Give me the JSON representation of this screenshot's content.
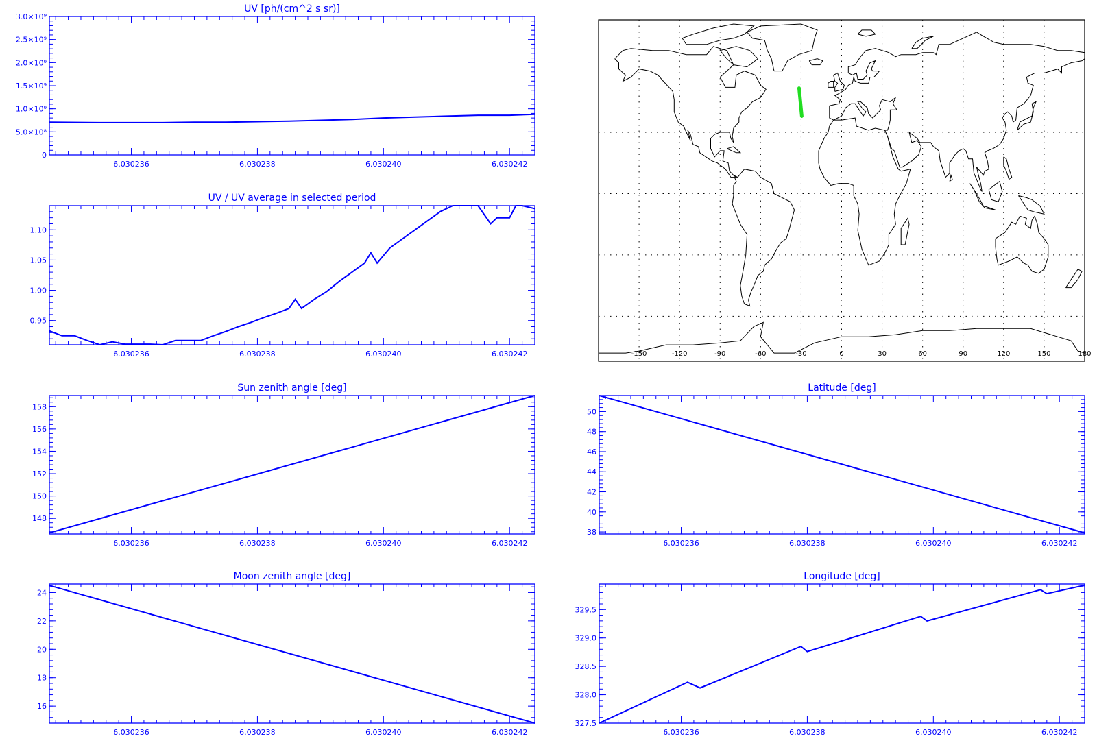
{
  "colors": {
    "axis": "#0000ff",
    "series": "#0000ff",
    "map_track": "#22dd22",
    "coast": "#000000"
  },
  "chart_data": [
    {
      "type": "line",
      "title": "UV [ph/(cm^2 s sr)]",
      "xlim": [
        6.0302347,
        6.0302424
      ],
      "ylim": [
        0,
        3000000000
      ],
      "xticks": [
        "6.030236",
        "6.030238",
        "6.030240",
        "6.030242"
      ],
      "xtick_values": [
        6.030236,
        6.030238,
        6.03024,
        6.030242
      ],
      "yticks": [
        {
          "value": 0,
          "label": "0"
        },
        {
          "value": 500000000,
          "label": "5.0×10⁸"
        },
        {
          "value": 1000000000,
          "label": "1.0×10⁹"
        },
        {
          "value": 1500000000,
          "label": "1.5×10⁹"
        },
        {
          "value": 2000000000,
          "label": "2.0×10⁹"
        },
        {
          "value": 2500000000,
          "label": "2.5×10⁹"
        },
        {
          "value": 3000000000,
          "label": "3.0×10⁹"
        }
      ],
      "series": [
        {
          "x": [
            6.0302347,
            6.0302355,
            6.030236,
            6.0302365,
            6.030237,
            6.0302375,
            6.030238,
            6.0302385,
            6.030239,
            6.0302395,
            6.03024,
            6.0302405,
            6.030241,
            6.0302415,
            6.030242,
            6.0302424
          ],
          "y": [
            710000000,
            700000000,
            700000000,
            700000000,
            710000000,
            710000000,
            720000000,
            730000000,
            750000000,
            770000000,
            800000000,
            820000000,
            840000000,
            860000000,
            860000000,
            880000000
          ]
        }
      ]
    },
    {
      "type": "line",
      "title": "UV / UV average in selected period",
      "xlim": [
        6.0302347,
        6.0302424
      ],
      "ylim": [
        0.91,
        1.14
      ],
      "xticks": [
        "6.030236",
        "6.030238",
        "6.030240",
        "6.030242"
      ],
      "xtick_values": [
        6.030236,
        6.030238,
        6.03024,
        6.030242
      ],
      "yticks": [
        {
          "value": 0.95,
          "label": "0.95"
        },
        {
          "value": 1.0,
          "label": "1.00"
        },
        {
          "value": 1.05,
          "label": "1.05"
        },
        {
          "value": 1.1,
          "label": "1.10"
        }
      ],
      "series": [
        {
          "x": [
            6.0302347,
            6.0302349,
            6.0302351,
            6.0302353,
            6.0302355,
            6.0302357,
            6.0302359,
            6.0302361,
            6.0302363,
            6.0302365,
            6.0302367,
            6.0302369,
            6.0302371,
            6.0302373,
            6.0302375,
            6.0302377,
            6.0302379,
            6.0302381,
            6.0302383,
            6.0302385,
            6.0302386,
            6.0302387,
            6.0302389,
            6.0302391,
            6.0302393,
            6.0302395,
            6.0302397,
            6.0302398,
            6.0302399,
            6.0302401,
            6.0302403,
            6.0302405,
            6.0302407,
            6.0302409,
            6.0302411,
            6.0302413,
            6.0302415,
            6.0302417,
            6.0302418,
            6.030242,
            6.0302421,
            6.0302422,
            6.0302424
          ],
          "y": [
            0.933,
            0.925,
            0.925,
            0.917,
            0.91,
            0.915,
            0.911,
            0.911,
            0.911,
            0.91,
            0.917,
            0.917,
            0.917,
            0.925,
            0.932,
            0.94,
            0.947,
            0.955,
            0.962,
            0.97,
            0.985,
            0.97,
            0.985,
            0.998,
            1.015,
            1.03,
            1.045,
            1.062,
            1.045,
            1.07,
            1.085,
            1.1,
            1.115,
            1.13,
            1.14,
            1.14,
            1.14,
            1.11,
            1.12,
            1.12,
            1.14,
            1.14,
            1.135
          ]
        }
      ]
    },
    {
      "type": "line",
      "title": "Sun zenith angle [deg]",
      "xlim": [
        6.0302347,
        6.0302424
      ],
      "ylim": [
        146.6,
        159.0
      ],
      "xticks": [
        "6.030236",
        "6.030238",
        "6.030240",
        "6.030242"
      ],
      "xtick_values": [
        6.030236,
        6.030238,
        6.03024,
        6.030242
      ],
      "yticks": [
        {
          "value": 148,
          "label": "148"
        },
        {
          "value": 150,
          "label": "150"
        },
        {
          "value": 152,
          "label": "152"
        },
        {
          "value": 154,
          "label": "154"
        },
        {
          "value": 156,
          "label": "156"
        },
        {
          "value": 158,
          "label": "158"
        }
      ],
      "series": [
        {
          "x": [
            6.0302347,
            6.0302424
          ],
          "y": [
            146.7,
            159.0
          ]
        }
      ]
    },
    {
      "type": "line",
      "title": "Latitude [deg]",
      "xlim": [
        6.0302347,
        6.0302424
      ],
      "ylim": [
        37.8,
        51.6
      ],
      "xticks": [
        "6.030236",
        "6.030238",
        "6.030240",
        "6.030242"
      ],
      "xtick_values": [
        6.030236,
        6.030238,
        6.03024,
        6.030242
      ],
      "yticks": [
        {
          "value": 38,
          "label": "38"
        },
        {
          "value": 40,
          "label": "40"
        },
        {
          "value": 42,
          "label": "42"
        },
        {
          "value": 44,
          "label": "44"
        },
        {
          "value": 46,
          "label": "46"
        },
        {
          "value": 48,
          "label": "48"
        },
        {
          "value": 50,
          "label": "50"
        }
      ],
      "series": [
        {
          "x": [
            6.0302347,
            6.0302424
          ],
          "y": [
            51.6,
            37.9
          ]
        }
      ]
    },
    {
      "type": "line",
      "title": "Moon zenith angle [deg]",
      "xlim": [
        6.0302347,
        6.0302424
      ],
      "ylim": [
        14.8,
        24.6
      ],
      "xticks": [
        "6.030236",
        "6.030238",
        "6.030240",
        "6.030242"
      ],
      "xtick_values": [
        6.030236,
        6.030238,
        6.03024,
        6.030242
      ],
      "yticks": [
        {
          "value": 16,
          "label": "16"
        },
        {
          "value": 18,
          "label": "18"
        },
        {
          "value": 20,
          "label": "20"
        },
        {
          "value": 22,
          "label": "22"
        },
        {
          "value": 24,
          "label": "24"
        }
      ],
      "series": [
        {
          "x": [
            6.0302347,
            6.0302424
          ],
          "y": [
            24.5,
            14.8
          ]
        }
      ]
    },
    {
      "type": "line",
      "title": "Longitude [deg]",
      "xlim": [
        6.0302347,
        6.0302424
      ],
      "ylim": [
        327.5,
        329.95
      ],
      "xticks": [
        "6.030236",
        "6.030238",
        "6.030240",
        "6.030242"
      ],
      "xtick_values": [
        6.030236,
        6.030238,
        6.03024,
        6.030242
      ],
      "yticks": [
        {
          "value": 327.5,
          "label": "327.5"
        },
        {
          "value": 328.0,
          "label": "328.0"
        },
        {
          "value": 328.5,
          "label": "328.5"
        },
        {
          "value": 329.0,
          "label": "329.0"
        },
        {
          "value": 329.5,
          "label": "329.5"
        }
      ],
      "series": [
        {
          "x": [
            6.0302347,
            6.0302361,
            6.0302363,
            6.0302379,
            6.030238,
            6.0302398,
            6.0302399,
            6.0302417,
            6.0302418,
            6.0302424
          ],
          "y": [
            327.5,
            328.22,
            328.12,
            328.85,
            328.76,
            329.38,
            329.3,
            329.85,
            329.78,
            329.93
          ]
        }
      ]
    }
  ],
  "map": {
    "xticks": [
      {
        "value": -150,
        "label": "-150"
      },
      {
        "value": -120,
        "label": "-120"
      },
      {
        "value": -90,
        "label": "-90"
      },
      {
        "value": -60,
        "label": "-60"
      },
      {
        "value": -30,
        "label": "-30"
      },
      {
        "value": 0,
        "label": "0"
      },
      {
        "value": 30,
        "label": "30"
      },
      {
        "value": 60,
        "label": "60"
      },
      {
        "value": 90,
        "label": "90"
      },
      {
        "value": 120,
        "label": "120"
      },
      {
        "value": 150,
        "label": "150"
      },
      {
        "value": 180,
        "label": "180"
      }
    ],
    "grid_lon": [
      -150,
      -120,
      -90,
      -60,
      -30,
      0,
      30,
      60,
      90,
      120,
      150
    ],
    "grid_lat": [
      -60,
      -30,
      0,
      30,
      60
    ],
    "track": {
      "lon": [
        -31.5,
        -29.5
      ],
      "lat": [
        51.6,
        37.9
      ]
    }
  }
}
